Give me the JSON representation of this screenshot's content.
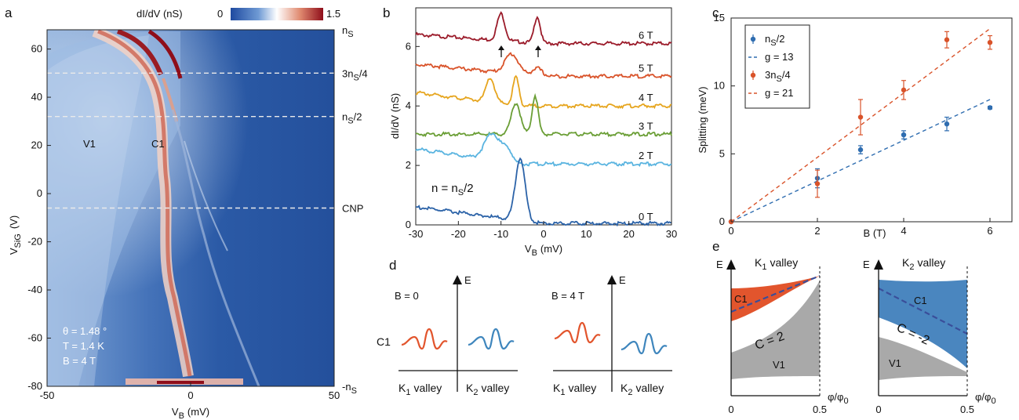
{
  "panels": {
    "a": {
      "letter": "a",
      "colorbar": {
        "label": "dI/dV (nS)",
        "min": "0",
        "max": "1.5",
        "colors": [
          "#1e4aa0",
          "#6f9ad4",
          "#ffffff",
          "#e08a70",
          "#8f0e1a"
        ]
      },
      "xlabel": "V_B (mV)",
      "xlabel_main": "V",
      "xlabel_sub": "B",
      "xlabel_unit": "(mV)",
      "ylabel_main": "V",
      "ylabel_sub": "SiG",
      "ylabel_unit": "(V)",
      "xticks": [
        "-50",
        "0",
        "50"
      ],
      "yticks": [
        "60",
        "40",
        "20",
        "0",
        "-20",
        "-40",
        "-60",
        "-80"
      ],
      "right_labels": [
        {
          "main": "n",
          "sub": "S",
          "prefix": "",
          "suffix": ""
        },
        {
          "main": "3n",
          "sub": "S",
          "prefix": "",
          "suffix": "/4"
        },
        {
          "main": "n",
          "sub": "S",
          "prefix": "",
          "suffix": "/2"
        },
        {
          "main": "CNP",
          "sub": "",
          "prefix": "",
          "suffix": ""
        },
        {
          "main": "-n",
          "sub": "S",
          "prefix": "",
          "suffix": ""
        }
      ],
      "annotations": [
        "V1",
        "C1"
      ],
      "params": [
        "θ = 1.48 °",
        "T = 1.4 K",
        "B = 4 T"
      ]
    },
    "b": {
      "letter": "b",
      "ylabel": "dI/dV (nS)",
      "xlabel_main": "V",
      "xlabel_sub": "B",
      "xlabel_unit": "(mV)",
      "xticks": [
        "-30",
        "-20",
        "-10",
        "0",
        "10",
        "20",
        "30"
      ],
      "yticks": [
        "0",
        "2",
        "4",
        "6"
      ],
      "inset_label_main": "n = n",
      "inset_label_sub": "S",
      "inset_label_suffix": "/2",
      "curves": [
        {
          "label": "6 T",
          "color": "#9b1b2a"
        },
        {
          "label": "5 T",
          "color": "#d9532a"
        },
        {
          "label": "4 T",
          "color": "#e6a51e"
        },
        {
          "label": "3 T",
          "color": "#6a9e35"
        },
        {
          "label": "2 T",
          "color": "#5ab4e0"
        },
        {
          "label": "0 T",
          "color": "#2c63a8"
        }
      ]
    },
    "c": {
      "letter": "c",
      "ylabel": "Splitting (meV)",
      "xlabel": "B (T)",
      "xticks": [
        "0",
        "2",
        "4",
        "6"
      ],
      "yticks": [
        "0",
        "5",
        "10",
        "15"
      ],
      "legend": [
        {
          "main": "n",
          "sub": "S",
          "suffix": "/2",
          "kind": "marker",
          "color": "#2f6db0"
        },
        {
          "main": "g = 13",
          "sub": "",
          "suffix": "",
          "kind": "dash",
          "color": "#2f6db0"
        },
        {
          "main": "3n",
          "sub": "S",
          "suffix": "/4",
          "kind": "marker",
          "color": "#d9532a"
        },
        {
          "main": "g = 21",
          "sub": "",
          "suffix": "",
          "kind": "dash",
          "color": "#d9532a"
        }
      ]
    },
    "d": {
      "letter": "d",
      "left_title": "B = 0",
      "right_title": "B = 4 T",
      "axis_label": "E",
      "state_label": "C1",
      "valley_k1_main": "K",
      "valley_k1_sub": "1",
      "valley_k2_main": "K",
      "valley_k2_sub": "2",
      "valley_word": "valley"
    },
    "e": {
      "letter": "e",
      "axis_label": "E",
      "xticks": [
        "0",
        "0.5"
      ],
      "xlabel": "φ/φ",
      "xlabel_sub": "0",
      "left": {
        "valley_main": "K",
        "valley_sub": "1",
        "valley_word": "valley",
        "c1": "C1",
        "chern": "C = 2",
        "v1": "V1"
      },
      "right": {
        "valley_main": "K",
        "valley_sub": "2",
        "valley_word": "valley",
        "c1": "C1",
        "chern": "C = -2",
        "v1": "V1"
      }
    }
  },
  "chart_data": [
    {
      "type": "line",
      "panel": "b",
      "xlabel": "V_B (mV)",
      "ylabel": "dI/dV (nS)",
      "xlim": [
        -30,
        30
      ],
      "ylim": [
        0,
        7.3
      ],
      "series": [
        {
          "name": "6 T",
          "offset": 6.1,
          "peaks": [
            [
              -10,
              0.9,
              1.3
            ],
            [
              -1.5,
              0.9,
              1.0
            ]
          ]
        },
        {
          "name": "5 T",
          "offset": 5.0,
          "peaks": [
            [
              -7.5,
              0.65,
              2.2
            ],
            [
              -1.5,
              0.25,
              1.6
            ]
          ]
        },
        {
          "name": "4 T",
          "offset": 4.0,
          "peaks": [
            [
              -12.5,
              0.8,
              1.4
            ],
            [
              -6.5,
              0.95,
              1.0
            ]
          ]
        },
        {
          "name": "3 T",
          "offset": 3.05,
          "peaks": [
            [
              -6.5,
              1.05,
              1.5
            ],
            [
              -2,
              1.3,
              1.0
            ]
          ]
        },
        {
          "name": "2 T",
          "offset": 2.05,
          "peaks": [
            [
              -12,
              0.9,
              2.5
            ],
            [
              -8.5,
              0.4,
              1.5
            ]
          ]
        },
        {
          "name": "0 T",
          "offset": 0.0,
          "peaks": [
            [
              -5.5,
              2.1,
              1.6
            ]
          ]
        }
      ]
    },
    {
      "type": "scatter",
      "panel": "c",
      "xlabel": "B (T)",
      "ylabel": "Splitting (meV)",
      "xlim": [
        0,
        6
      ],
      "ylim": [
        0,
        15
      ],
      "series": [
        {
          "name": "n_S/2",
          "x": [
            0,
            2,
            3,
            4,
            5,
            6
          ],
          "y": [
            0,
            3.2,
            5.3,
            6.4,
            7.2,
            8.4
          ],
          "err": [
            0,
            0.7,
            0.3,
            0.3,
            0.5,
            0.1
          ],
          "fit_slope": 1.5
        },
        {
          "name": "3n_S/4",
          "x": [
            0,
            2,
            3,
            4,
            5,
            6
          ],
          "y": [
            0,
            2.8,
            7.7,
            9.7,
            13.4,
            13.2
          ],
          "err": [
            0,
            1.0,
            1.3,
            0.7,
            0.6,
            0.5
          ],
          "fit_slope": 2.37
        }
      ]
    },
    {
      "type": "heatmap",
      "panel": "a",
      "xlabel": "V_B (mV)",
      "ylabel": "V_SiG (V)",
      "xlim": [
        -50,
        50
      ],
      "ylim": [
        -80,
        68
      ],
      "dashed_lines_y": [
        50,
        32,
        -6
      ]
    }
  ]
}
